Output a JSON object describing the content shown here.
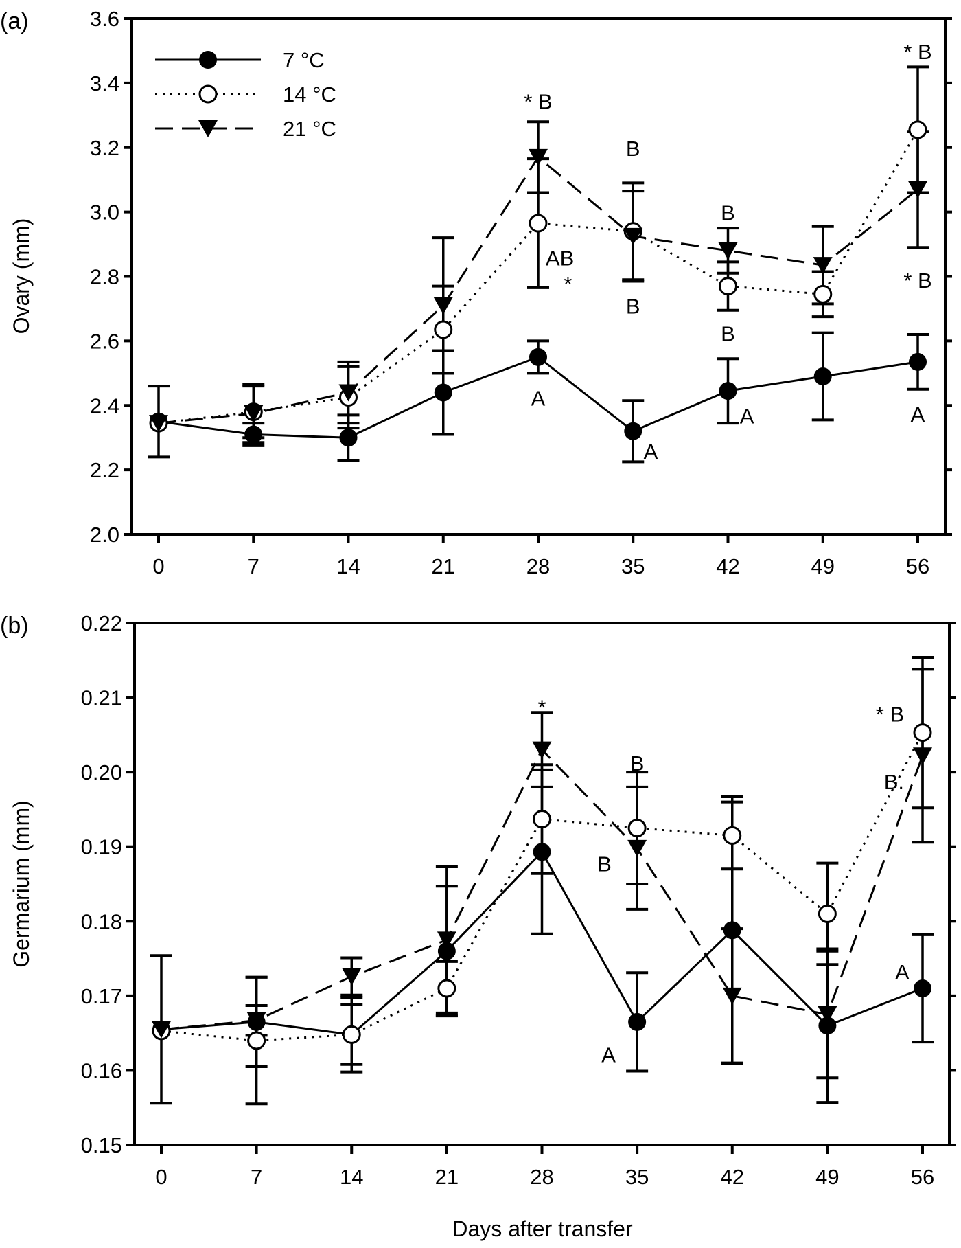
{
  "chart_data": [
    {
      "panel_label": "(a)",
      "type": "line",
      "xlabel": "",
      "ylabel": "Ovary (mm)",
      "x": [
        0,
        7,
        14,
        21,
        28,
        35,
        42,
        49,
        56
      ],
      "xticks": [
        "0",
        "7",
        "14",
        "21",
        "28",
        "35",
        "42",
        "49",
        "56"
      ],
      "ylim": [
        2.0,
        3.6
      ],
      "yticks": [
        "2.0",
        "2.2",
        "2.4",
        "2.6",
        "2.8",
        "3.0",
        "3.2",
        "3.4",
        "3.6"
      ],
      "grid": false,
      "legend_position": "top-left",
      "series": [
        {
          "name": "7 °C",
          "marker": "filled-circle",
          "line": "solid",
          "values": [
            2.35,
            2.31,
            2.3,
            2.44,
            2.55,
            2.32,
            2.445,
            2.49,
            2.535
          ],
          "error": [
            0.11,
            0.035,
            0.07,
            0.13,
            0.05,
            0.095,
            0.1,
            0.135,
            0.085
          ]
        },
        {
          "name": "14 °C",
          "marker": "open-circle",
          "line": "dotted",
          "values": [
            2.345,
            2.38,
            2.425,
            2.635,
            2.965,
            2.94,
            2.77,
            2.745,
            3.255
          ],
          "error": [
            0.0,
            0.08,
            0.095,
            0.135,
            0.2,
            0.15,
            0.075,
            0.07,
            0.195
          ]
        },
        {
          "name": "21 °C",
          "marker": "filled-triangle-down",
          "line": "dashed",
          "values": [
            2.345,
            2.375,
            2.44,
            2.71,
            3.17,
            2.925,
            2.88,
            2.835,
            3.07
          ],
          "error": [
            0.0,
            0.09,
            0.095,
            0.21,
            0.11,
            0.14,
            0.07,
            0.12,
            0.18
          ]
        }
      ],
      "annotations": [
        "* B",
        "B",
        "B",
        "AB",
        "*",
        "B",
        "B",
        "A",
        "A",
        "A",
        "* B",
        "* B",
        "A"
      ]
    },
    {
      "panel_label": "(b)",
      "type": "line",
      "xlabel": "Days after transfer",
      "ylabel": "Germarium (mm)",
      "x": [
        0,
        7,
        14,
        21,
        28,
        35,
        42,
        49,
        56
      ],
      "xticks": [
        "0",
        "7",
        "14",
        "21",
        "28",
        "35",
        "42",
        "49",
        "56"
      ],
      "ylim": [
        0.15,
        0.22
      ],
      "yticks": [
        "0.15",
        "0.16",
        "0.17",
        "0.18",
        "0.19",
        "0.20",
        "0.21",
        "0.22"
      ],
      "grid": false,
      "series": [
        {
          "name": "7 °C",
          "marker": "filled-circle",
          "line": "solid",
          "values": [
            0.1655,
            0.1665,
            0.1648,
            0.176,
            0.1893,
            0.1665,
            0.1788,
            0.166,
            0.171
          ],
          "error": [
            0.0099,
            0.006,
            0.004,
            0.0087,
            0.011,
            0.0066,
            0.0179,
            0.0103,
            0.0072
          ]
        },
        {
          "name": "14 °C",
          "marker": "open-circle",
          "line": "dotted",
          "values": [
            0.1653,
            0.164,
            0.1648,
            0.171,
            0.1937,
            0.1925,
            0.1915,
            0.181,
            0.2053
          ],
          "error": [
            0.0,
            0.0085,
            0.005,
            0.0036,
            0.0073,
            0.0075,
            0.0045,
            0.0068,
            0.0101
          ]
        },
        {
          "name": "21 °C",
          "marker": "filled-triangle-down",
          "line": "dashed",
          "values": [
            0.1655,
            0.1667,
            0.1726,
            0.1775,
            0.203,
            0.1898,
            0.17,
            0.1675,
            0.2022
          ],
          "error": [
            0.0,
            0.002,
            0.0025,
            0.0098,
            0.005,
            0.0082,
            0.009,
            0.0085,
            0.0116
          ]
        }
      ],
      "annotations": [
        "*",
        "B",
        "B",
        "A",
        "* B",
        "B.",
        "A"
      ]
    }
  ]
}
